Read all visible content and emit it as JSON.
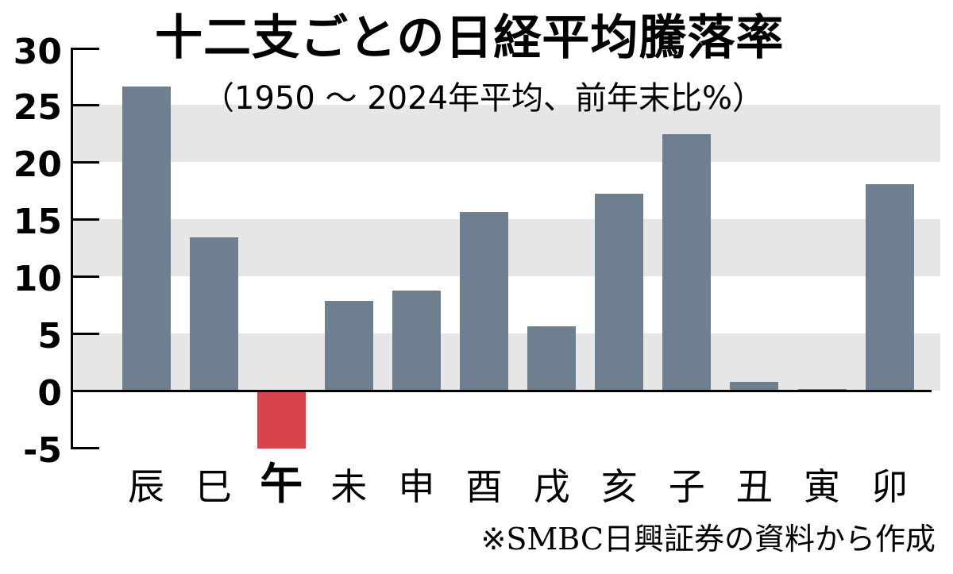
{
  "chart_data": {
    "type": "bar",
    "title": "十二支ごとの日経平均騰落率",
    "subtitle": "（1950 ～ 2024年平均、前年末比%）",
    "xlabel": "",
    "ylabel": "",
    "ylim": [
      -5,
      30
    ],
    "yticks": [
      "30",
      "25",
      "20",
      "15",
      "10",
      "5",
      "0",
      "-5"
    ],
    "categories": [
      "辰",
      "巳",
      "午",
      "未",
      "申",
      "酉",
      "戌",
      "亥",
      "子",
      "丑",
      "寅",
      "卯"
    ],
    "values": [
      26.7,
      13.5,
      -5.0,
      7.9,
      8.8,
      15.7,
      5.7,
      17.3,
      22.5,
      0.8,
      0.2,
      18.1
    ],
    "highlight": "午",
    "grid": "alternating horizontal bands",
    "colors": {
      "positive": "#6e8090",
      "negative": "#d9444c",
      "band": "#e6e6e6"
    },
    "source": "※SMBC日興証券の資料から作成"
  }
}
